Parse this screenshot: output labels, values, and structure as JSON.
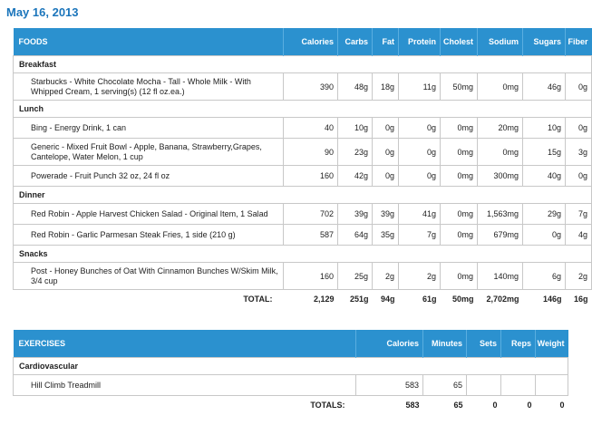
{
  "date": "May 16, 2013",
  "foods_table": {
    "headers": [
      "FOODS",
      "Calories",
      "Carbs",
      "Fat",
      "Protein",
      "Cholest",
      "Sodium",
      "Sugars",
      "Fiber"
    ],
    "meals": [
      {
        "name": "Breakfast",
        "items": [
          {
            "name": "Starbucks - White Chocolate Mocha - Tall - Whole Milk - With Whipped Cream, 1 serving(s) (12 fl oz.ea.)",
            "values": [
              "390",
              "48g",
              "18g",
              "11g",
              "50mg",
              "0mg",
              "46g",
              "0g"
            ]
          }
        ]
      },
      {
        "name": "Lunch",
        "items": [
          {
            "name": "Bing - Energy Drink, 1 can",
            "values": [
              "40",
              "10g",
              "0g",
              "0g",
              "0mg",
              "20mg",
              "10g",
              "0g"
            ]
          },
          {
            "name": "Generic - Mixed Fruit Bowl - Apple, Banana, Strawberry,Grapes, Cantelope, Water Melon, 1 cup",
            "values": [
              "90",
              "23g",
              "0g",
              "0g",
              "0mg",
              "0mg",
              "15g",
              "3g"
            ]
          },
          {
            "name": "Powerade - Fruit Punch 32 oz, 24 fl oz",
            "values": [
              "160",
              "42g",
              "0g",
              "0g",
              "0mg",
              "300mg",
              "40g",
              "0g"
            ]
          }
        ]
      },
      {
        "name": "Dinner",
        "items": [
          {
            "name": "Red Robin - Apple Harvest Chicken Salad - Original Item, 1 Salad",
            "values": [
              "702",
              "39g",
              "39g",
              "41g",
              "0mg",
              "1,563mg",
              "29g",
              "7g"
            ]
          },
          {
            "name": "Red Robin - Garlic Parmesan Steak Fries, 1 side (210 g)",
            "values": [
              "587",
              "64g",
              "35g",
              "7g",
              "0mg",
              "679mg",
              "0g",
              "4g"
            ]
          }
        ]
      },
      {
        "name": "Snacks",
        "items": [
          {
            "name": "Post - Honey Bunches of Oat With Cinnamon Bunches W/Skim Milk, 3/4 cup",
            "values": [
              "160",
              "25g",
              "2g",
              "2g",
              "0mg",
              "140mg",
              "6g",
              "2g"
            ]
          }
        ]
      }
    ],
    "total_label": "TOTAL:",
    "totals": [
      "2,129",
      "251g",
      "94g",
      "61g",
      "50mg",
      "2,702mg",
      "146g",
      "16g"
    ]
  },
  "exercise_table": {
    "headers": [
      "EXERCISES",
      "Calories",
      "Minutes",
      "Sets",
      "Reps",
      "Weight"
    ],
    "category": "Cardiovascular",
    "items": [
      {
        "name": "Hill Climb Treadmill",
        "values": [
          "583",
          "65",
          "",
          "",
          ""
        ]
      }
    ],
    "total_label": "TOTALS:",
    "totals": [
      "583",
      "65",
      "0",
      "0",
      "0"
    ]
  }
}
